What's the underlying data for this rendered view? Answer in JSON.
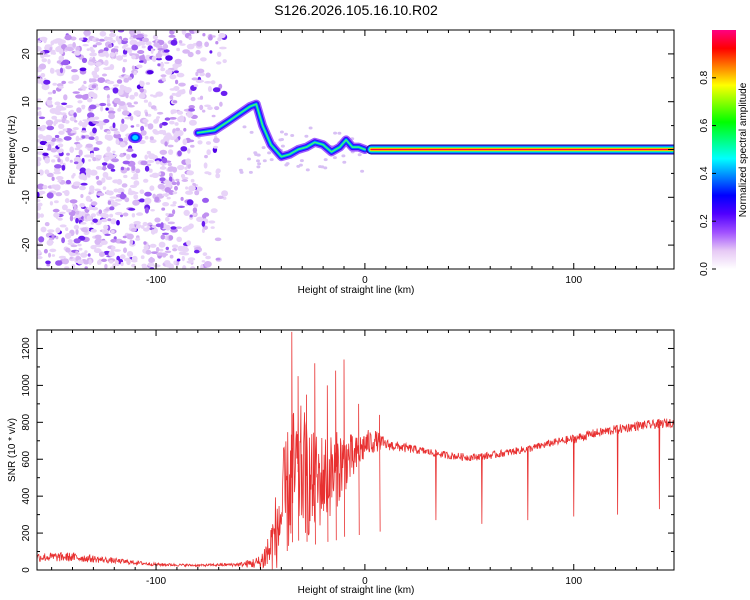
{
  "title": "S126.2026.105.16.10.R02",
  "chart_data": [
    {
      "type": "heatmap",
      "name": "spectrogram",
      "xlabel": "Height of straight line (km)",
      "ylabel": "Frequency (Hz)",
      "xlim": [
        -157,
        148
      ],
      "ylim": [
        -25,
        25
      ],
      "xticks": [
        -100,
        0,
        100
      ],
      "xtick_labels": [
        "-100",
        "0",
        "100"
      ],
      "yticks": [
        -20,
        -10,
        0,
        10,
        20
      ],
      "ytick_labels": [
        "-20",
        "-10",
        "0",
        "10",
        "20"
      ],
      "colorbar": {
        "label": "Normalized spectral amplitude",
        "range": [
          0,
          1
        ],
        "ticks": [
          0.0,
          0.2,
          0.4,
          0.6,
          0.8
        ],
        "tick_labels": [
          "0.0",
          "0.2",
          "0.4",
          "0.6",
          "0.8"
        ],
        "colors": [
          "#ffffff",
          "#e6c8f5",
          "#a050ff",
          "#5000ff",
          "#0000ff",
          "#0080ff",
          "#00ffff",
          "#00ff80",
          "#00ff00",
          "#80ff00",
          "#ffff00",
          "#ff8000",
          "#ff0000",
          "#ff0080"
        ]
      },
      "features": {
        "noise_region_x": [
          -157,
          -67
        ],
        "carrier_trace": {
          "x": [
            -112,
            -107,
            -80,
            -72,
            -65,
            -60,
            -55,
            -52,
            -49,
            -45,
            -40,
            -36,
            -32,
            -28,
            -24,
            -20,
            -16,
            -12,
            -9,
            -6,
            -3,
            0,
            3,
            148
          ],
          "y": [
            2.5,
            2.5,
            3.5,
            4.0,
            6.0,
            7.5,
            9.0,
            9.5,
            5.0,
            1.0,
            -1.5,
            -1.0,
            0.0,
            0.5,
            1.5,
            1.0,
            -0.5,
            0.5,
            2.0,
            0.5,
            0.5,
            0.0,
            0.0,
            0.0
          ]
        }
      }
    },
    {
      "type": "line",
      "name": "snr",
      "xlabel": "Height of straight line (km)",
      "ylabel": "SNR (10 * v/v)",
      "xlim": [
        -157,
        148
      ],
      "ylim": [
        0,
        1300
      ],
      "xticks": [
        -100,
        0,
        100
      ],
      "xtick_labels": [
        "-100",
        "0",
        "100"
      ],
      "yticks": [
        0,
        200,
        400,
        600,
        800,
        1000,
        1200
      ],
      "ytick_labels": [
        "0",
        "200",
        "400",
        "600",
        "800",
        "1000",
        "1200"
      ],
      "color": "#e83030",
      "envelope": {
        "x": [
          -157,
          -140,
          -120,
          -100,
          -80,
          -60,
          -50,
          -45,
          -40,
          -35,
          -30,
          -25,
          -20,
          -15,
          -10,
          -5,
          0,
          5,
          10,
          20,
          30,
          40,
          50,
          60,
          70,
          80,
          90,
          100,
          110,
          120,
          130,
          140,
          148
        ],
        "mean": [
          70,
          70,
          50,
          30,
          25,
          30,
          40,
          120,
          300,
          500,
          550,
          450,
          500,
          520,
          600,
          600,
          680,
          700,
          680,
          660,
          640,
          620,
          610,
          620,
          640,
          660,
          690,
          710,
          740,
          760,
          780,
          790,
          800
        ],
        "spread": [
          25,
          25,
          15,
          8,
          6,
          10,
          40,
          150,
          300,
          380,
          350,
          300,
          250,
          220,
          180,
          120,
          80,
          60,
          30,
          25,
          20,
          20,
          20,
          20,
          20,
          20,
          20,
          25,
          25,
          25,
          25,
          25,
          25
        ]
      },
      "spikes": [
        {
          "x": -35,
          "y": 1290
        },
        {
          "x": -32,
          "y": 1050
        },
        {
          "x": -28,
          "y": 950
        },
        {
          "x": -24,
          "y": 1120
        },
        {
          "x": -18,
          "y": 1000
        },
        {
          "x": -14,
          "y": 1080
        },
        {
          "x": -10,
          "y": 1140
        },
        {
          "x": -3,
          "y": 900
        },
        {
          "x": 7,
          "y": 840
        }
      ],
      "dips": [
        {
          "x": 34,
          "y": 270
        },
        {
          "x": 56,
          "y": 250
        },
        {
          "x": 78,
          "y": 270
        },
        {
          "x": 100,
          "y": 290
        },
        {
          "x": 121,
          "y": 300
        },
        {
          "x": 141,
          "y": 330
        }
      ]
    }
  ]
}
